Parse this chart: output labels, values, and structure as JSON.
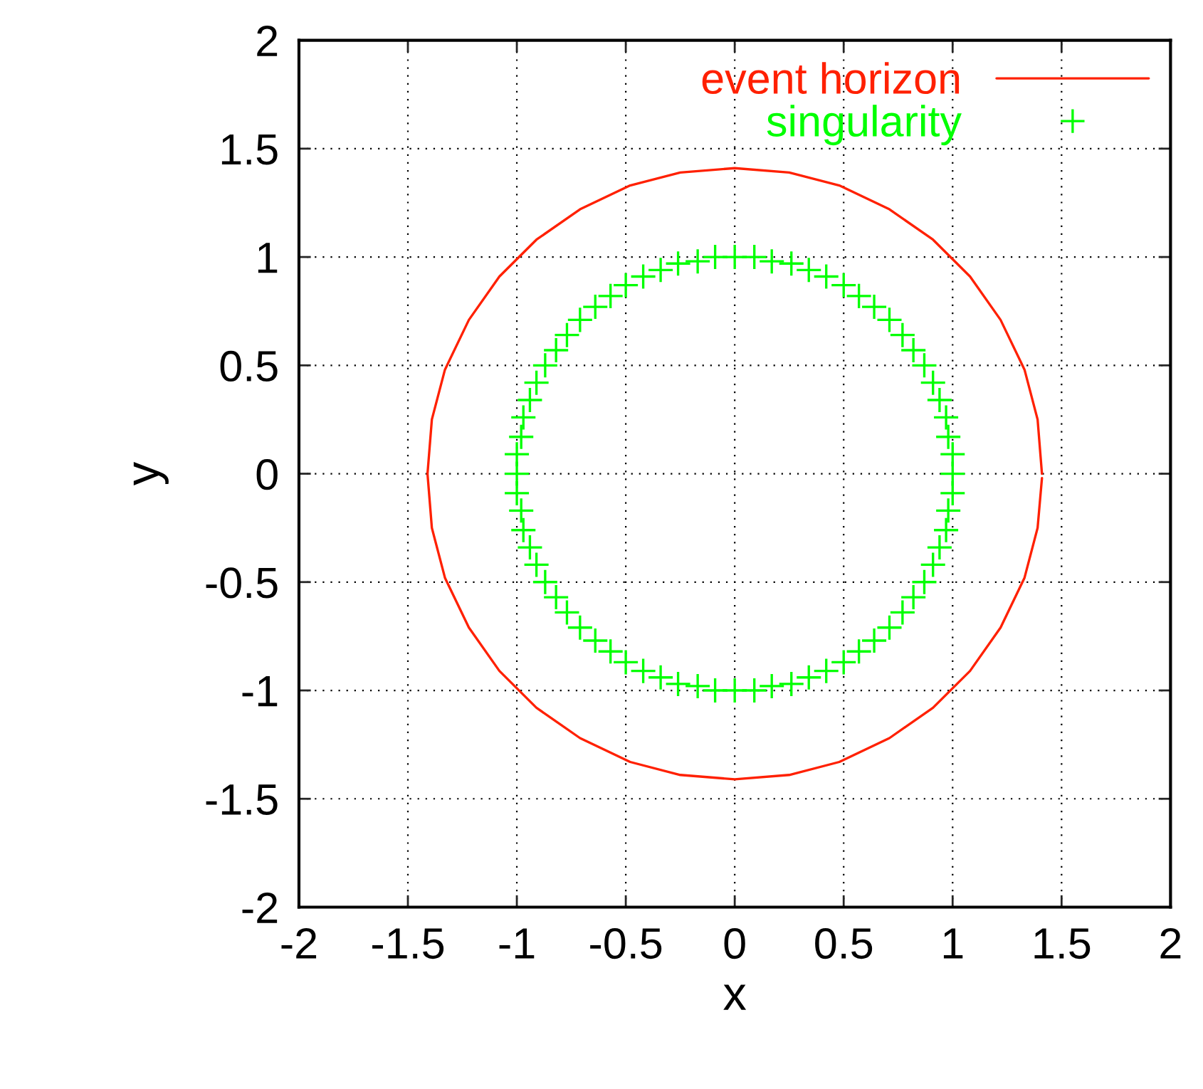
{
  "chart_data": {
    "type": "line",
    "xlabel": "x",
    "ylabel": "y",
    "xlim": [
      -2,
      2
    ],
    "ylim": [
      -2,
      2
    ],
    "xticks": [
      -2,
      -1.5,
      -1,
      -0.5,
      0,
      0.5,
      1,
      1.5,
      2
    ],
    "yticks": [
      -2,
      -1.5,
      -1,
      -0.5,
      0,
      0.5,
      1,
      1.5,
      2
    ],
    "grid": true,
    "legend": "top right",
    "series": [
      {
        "name": "event horizon",
        "color": "#ff2000",
        "marker": "none",
        "line_style": "solid",
        "x": [
          1.41,
          1.39,
          1.33,
          1.22,
          1.08,
          0.91,
          0.71,
          0.48,
          0.25,
          0,
          -0.25,
          -0.48,
          -0.71,
          -0.91,
          -1.08,
          -1.22,
          -1.33,
          -1.39,
          -1.41,
          -1.39,
          -1.33,
          -1.22,
          -1.08,
          -0.91,
          -0.71,
          -0.48,
          -0.25,
          0,
          0.25,
          0.48,
          0.71,
          0.91,
          1.08,
          1.22,
          1.33,
          1.39,
          1.41
        ],
        "values": [
          0,
          0.25,
          0.48,
          0.71,
          0.91,
          1.08,
          1.22,
          1.33,
          1.39,
          1.41,
          1.39,
          1.33,
          1.22,
          1.08,
          0.91,
          0.71,
          0.48,
          0.25,
          0,
          -0.25,
          -0.48,
          -0.71,
          -0.91,
          -1.08,
          -1.22,
          -1.33,
          -1.39,
          -1.41,
          -1.39,
          -1.33,
          -1.22,
          -1.08,
          -0.91,
          -0.71,
          -0.48,
          -0.25,
          -0.02
        ]
      },
      {
        "name": "singularity",
        "type": "scatter",
        "color": "#00ff00",
        "marker": "cross",
        "x": [
          1,
          1,
          0.98,
          0.97,
          0.94,
          0.91,
          0.87,
          0.82,
          0.77,
          0.71,
          0.64,
          0.57,
          0.5,
          0.42,
          0.34,
          0.26,
          0.17,
          0.09,
          0,
          -0.09,
          -0.17,
          -0.26,
          -0.34,
          -0.42,
          -0.5,
          -0.57,
          -0.64,
          -0.71,
          -0.77,
          -0.82,
          -0.87,
          -0.91,
          -0.94,
          -0.97,
          -0.98,
          -1,
          -1,
          -1,
          -0.98,
          -0.97,
          -0.94,
          -0.91,
          -0.87,
          -0.82,
          -0.77,
          -0.71,
          -0.64,
          -0.57,
          -0.5,
          -0.42,
          -0.34,
          -0.26,
          -0.17,
          -0.09,
          0,
          0.09,
          0.17,
          0.26,
          0.34,
          0.42,
          0.5,
          0.57,
          0.64,
          0.71,
          0.77,
          0.82,
          0.87,
          0.91,
          0.94,
          0.97,
          0.98,
          1
        ],
        "values": [
          0,
          0.09,
          0.17,
          0.26,
          0.34,
          0.42,
          0.5,
          0.57,
          0.64,
          0.71,
          0.77,
          0.82,
          0.87,
          0.91,
          0.94,
          0.97,
          0.98,
          1,
          1,
          1,
          0.98,
          0.97,
          0.94,
          0.91,
          0.87,
          0.82,
          0.77,
          0.71,
          0.64,
          0.57,
          0.5,
          0.42,
          0.34,
          0.26,
          0.17,
          0.09,
          0,
          -0.09,
          -0.17,
          -0.26,
          -0.34,
          -0.42,
          -0.5,
          -0.57,
          -0.64,
          -0.71,
          -0.77,
          -0.82,
          -0.87,
          -0.91,
          -0.94,
          -0.97,
          -0.98,
          -1,
          -1,
          -1,
          -0.98,
          -0.97,
          -0.94,
          -0.91,
          -0.87,
          -0.82,
          -0.77,
          -0.71,
          -0.64,
          -0.57,
          -0.5,
          -0.42,
          -0.34,
          -0.26,
          -0.17,
          -0.09
        ]
      }
    ]
  }
}
